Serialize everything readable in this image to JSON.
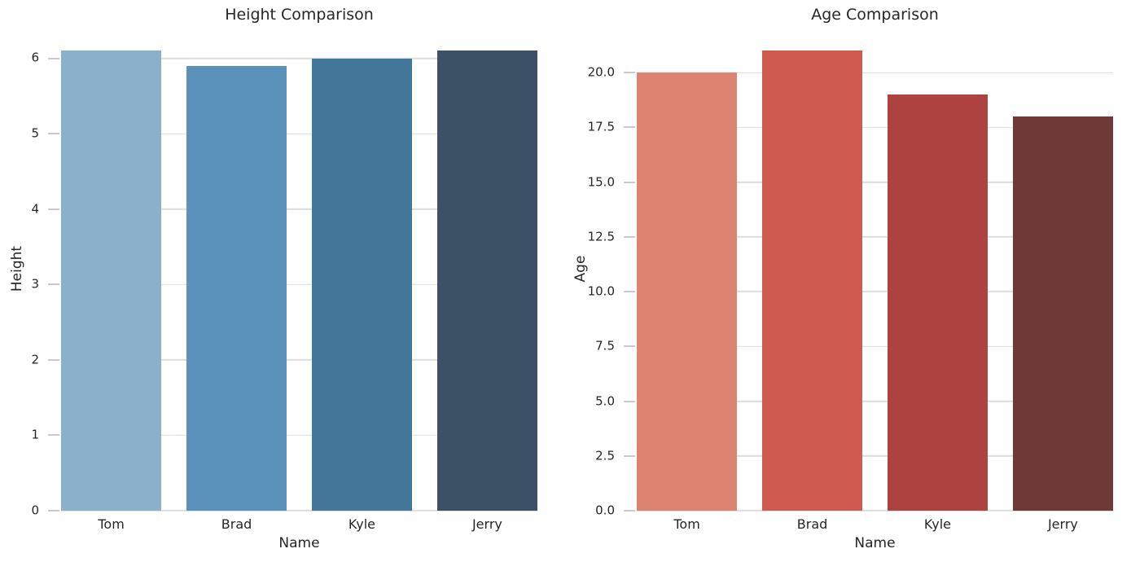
{
  "chart_data": [
    {
      "type": "bar",
      "title": "Height Comparison",
      "xlabel": "Name",
      "ylabel": "Height",
      "categories": [
        "Tom",
        "Brad",
        "Kyle",
        "Jerry"
      ],
      "values": [
        6.1,
        5.9,
        6.0,
        6.1
      ],
      "ylim": [
        0,
        6.405
      ],
      "yticks": [
        0,
        1,
        2,
        3,
        4,
        5,
        6
      ],
      "ytick_labels": [
        "0",
        "1",
        "2",
        "3",
        "4",
        "5",
        "6"
      ],
      "bar_colors": [
        "#8ab0cc",
        "#5b92bb",
        "#44789b",
        "#3d5166"
      ],
      "bar_width_fraction": 0.8,
      "grid": true,
      "legend": "none"
    },
    {
      "type": "bar",
      "title": "Age Comparison",
      "xlabel": "Name",
      "ylabel": "Age",
      "categories": [
        "Tom",
        "Brad",
        "Kyle",
        "Jerry"
      ],
      "values": [
        20,
        21,
        19,
        18
      ],
      "ylim": [
        0,
        22.05
      ],
      "yticks": [
        0,
        2.5,
        5,
        7.5,
        10,
        12.5,
        15,
        17.5,
        20
      ],
      "ytick_labels": [
        "0.0",
        "2.5",
        "5.0",
        "7.5",
        "10.0",
        "12.5",
        "15.0",
        "17.5",
        "20.0"
      ],
      "bar_colors": [
        "#dd8372",
        "#cf5a50",
        "#ad423e",
        "#6e3936"
      ],
      "bar_width_fraction": 0.8,
      "grid": true,
      "legend": "none"
    }
  ],
  "style": {
    "background": "#ffffff",
    "grid_color": "#dcdcdc",
    "tick_color": "#c9c9c9",
    "text_color": "#262626"
  }
}
